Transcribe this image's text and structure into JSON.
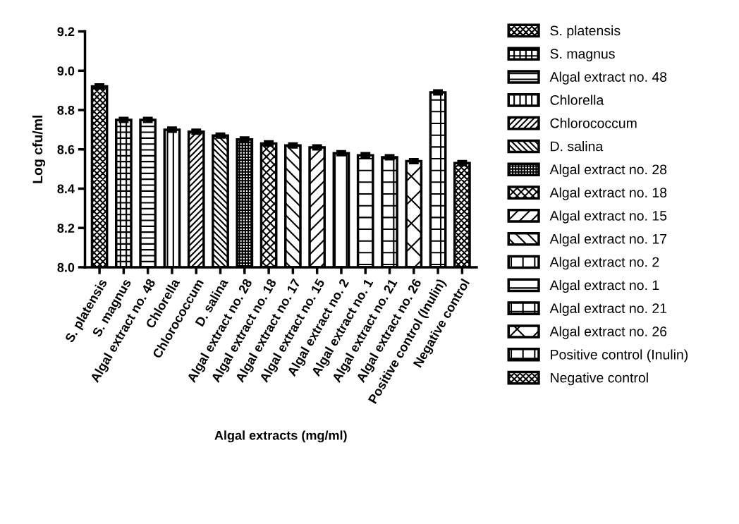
{
  "chart_data": {
    "type": "bar",
    "xlabel": "Algal extracts (mg/ml)",
    "ylabel": "Log cfu/ml",
    "categories": [
      "S. platensis",
      "S. magnus",
      "Algal extract no. 48",
      "Chlorella",
      "Chlorococcum",
      "D. salina",
      "Algal extract no. 28",
      "Algal extract no. 18",
      "Algal extract no. 17",
      "Algal extract no. 15",
      "Algal extract no. 2",
      "Algal extract no. 1",
      "Algal extract no. 21",
      "Algal extract no. 26",
      "Positive control (Inulin)",
      "Negative control"
    ],
    "series": [
      {
        "name": "S. platensis",
        "color": "#000000",
        "values": [
          8.92,
          null,
          null,
          null,
          null,
          null,
          null,
          null,
          null,
          null,
          null,
          null,
          null,
          null,
          null,
          null
        ],
        "errors": [
          0.01,
          null,
          null,
          null,
          null,
          null,
          null,
          null,
          null,
          null,
          null,
          null,
          null,
          null,
          null,
          null
        ]
      },
      {
        "name": "S. magnus",
        "color": "#000000",
        "values": [
          null,
          8.75,
          null,
          null,
          null,
          null,
          null,
          null,
          null,
          null,
          null,
          null,
          null,
          null,
          null,
          null
        ],
        "errors": [
          null,
          0.01,
          null,
          null,
          null,
          null,
          null,
          null,
          null,
          null,
          null,
          null,
          null,
          null,
          null,
          null
        ]
      },
      {
        "name": "Algal extract no. 48",
        "color": "#000000",
        "values": [
          null,
          null,
          8.75,
          null,
          null,
          null,
          null,
          null,
          null,
          null,
          null,
          null,
          null,
          null,
          null,
          null
        ],
        "errors": [
          null,
          null,
          0.01,
          null,
          null,
          null,
          null,
          null,
          null,
          null,
          null,
          null,
          null,
          null,
          null,
          null
        ]
      },
      {
        "name": "Chlorella",
        "color": "#000000",
        "values": [
          null,
          null,
          null,
          8.7,
          null,
          null,
          null,
          null,
          null,
          null,
          null,
          null,
          null,
          null,
          null,
          null
        ],
        "errors": [
          null,
          null,
          null,
          0.01,
          null,
          null,
          null,
          null,
          null,
          null,
          null,
          null,
          null,
          null,
          null,
          null
        ]
      },
      {
        "name": "Chlorococcum",
        "color": "#000000",
        "values": [
          null,
          null,
          null,
          null,
          8.69,
          null,
          null,
          null,
          null,
          null,
          null,
          null,
          null,
          null,
          null,
          null
        ],
        "errors": [
          null,
          null,
          null,
          null,
          0.01,
          null,
          null,
          null,
          null,
          null,
          null,
          null,
          null,
          null,
          null,
          null
        ]
      },
      {
        "name": "D. salina",
        "color": "#000000",
        "values": [
          null,
          null,
          null,
          null,
          null,
          8.67,
          null,
          null,
          null,
          null,
          null,
          null,
          null,
          null,
          null,
          null
        ],
        "errors": [
          null,
          null,
          null,
          null,
          null,
          0.01,
          null,
          null,
          null,
          null,
          null,
          null,
          null,
          null,
          null,
          null
        ]
      },
      {
        "name": "Algal extract no. 28",
        "color": "#000000",
        "values": [
          null,
          null,
          null,
          null,
          null,
          null,
          8.65,
          null,
          null,
          null,
          null,
          null,
          null,
          null,
          null,
          null
        ],
        "errors": [
          null,
          null,
          null,
          null,
          null,
          null,
          0.01,
          null,
          null,
          null,
          null,
          null,
          null,
          null,
          null,
          null
        ]
      },
      {
        "name": "Algal extract no. 18",
        "color": "#000000",
        "values": [
          null,
          null,
          null,
          null,
          null,
          null,
          null,
          8.63,
          null,
          null,
          null,
          null,
          null,
          null,
          null,
          null
        ],
        "errors": [
          null,
          null,
          null,
          null,
          null,
          null,
          null,
          0.01,
          null,
          null,
          null,
          null,
          null,
          null,
          null,
          null
        ]
      },
      {
        "name": "Algal extract no. 15",
        "color": "#000000",
        "values": [
          null,
          null,
          null,
          null,
          null,
          null,
          null,
          null,
          null,
          8.61,
          null,
          null,
          null,
          null,
          null,
          null
        ],
        "errors": [
          null,
          null,
          null,
          null,
          null,
          null,
          null,
          null,
          null,
          0.01,
          null,
          null,
          null,
          null,
          null,
          null
        ]
      },
      {
        "name": "Algal extract no. 17",
        "color": "#000000",
        "values": [
          null,
          null,
          null,
          null,
          null,
          null,
          null,
          null,
          8.62,
          null,
          null,
          null,
          null,
          null,
          null,
          null
        ],
        "errors": [
          null,
          null,
          null,
          null,
          null,
          null,
          null,
          null,
          0.01,
          null,
          null,
          null,
          null,
          null,
          null,
          null
        ]
      },
      {
        "name": "Algal extract no. 2",
        "color": "#000000",
        "values": [
          null,
          null,
          null,
          null,
          null,
          null,
          null,
          null,
          null,
          null,
          8.58,
          null,
          null,
          null,
          null,
          null
        ],
        "errors": [
          null,
          null,
          null,
          null,
          null,
          null,
          null,
          null,
          null,
          null,
          0.01,
          null,
          null,
          null,
          null,
          null
        ]
      },
      {
        "name": "Algal extract no. 1",
        "color": "#000000",
        "values": [
          null,
          null,
          null,
          null,
          null,
          null,
          null,
          null,
          null,
          null,
          null,
          8.57,
          null,
          null,
          null,
          null
        ],
        "errors": [
          null,
          null,
          null,
          null,
          null,
          null,
          null,
          null,
          null,
          null,
          null,
          0.01,
          null,
          null,
          null,
          null
        ]
      },
      {
        "name": "Algal extract no. 21",
        "color": "#000000",
        "values": [
          null,
          null,
          null,
          null,
          null,
          null,
          null,
          null,
          null,
          null,
          null,
          null,
          8.56,
          null,
          null,
          null
        ],
        "errors": [
          null,
          null,
          null,
          null,
          null,
          null,
          null,
          null,
          null,
          null,
          null,
          null,
          0.01,
          null,
          null,
          null
        ]
      },
      {
        "name": "Algal extract no. 26",
        "color": "#000000",
        "values": [
          null,
          null,
          null,
          null,
          null,
          null,
          null,
          null,
          null,
          null,
          null,
          null,
          null,
          8.54,
          null,
          null
        ],
        "errors": [
          null,
          null,
          null,
          null,
          null,
          null,
          null,
          null,
          null,
          null,
          null,
          null,
          null,
          0.01,
          null,
          null
        ]
      },
      {
        "name": "Positive control (Inulin)",
        "color": "#000000",
        "values": [
          null,
          null,
          null,
          null,
          null,
          null,
          null,
          null,
          null,
          null,
          null,
          null,
          null,
          null,
          8.89,
          null
        ],
        "errors": [
          null,
          null,
          null,
          null,
          null,
          null,
          null,
          null,
          null,
          null,
          null,
          null,
          null,
          null,
          0.01,
          null
        ]
      },
      {
        "name": "Negative control",
        "color": "#000000",
        "values": [
          null,
          null,
          null,
          null,
          null,
          null,
          null,
          null,
          null,
          null,
          null,
          null,
          null,
          null,
          null,
          8.53
        ],
        "errors": [
          null,
          null,
          null,
          null,
          null,
          null,
          null,
          null,
          null,
          null,
          null,
          null,
          null,
          null,
          null,
          0.01
        ]
      }
    ],
    "ylim": [
      8.0,
      9.2
    ],
    "yticks": [
      {
        "value": 8.0,
        "label": "8.0"
      },
      {
        "value": 8.2,
        "label": "8.2"
      },
      {
        "value": 8.4,
        "label": "8.4"
      },
      {
        "value": 8.6,
        "label": "8.6"
      },
      {
        "value": 8.8,
        "label": "8.8"
      },
      {
        "value": 9.0,
        "label": "9.0"
      },
      {
        "value": 9.2,
        "label": "9.2"
      }
    ],
    "legend": "right"
  }
}
